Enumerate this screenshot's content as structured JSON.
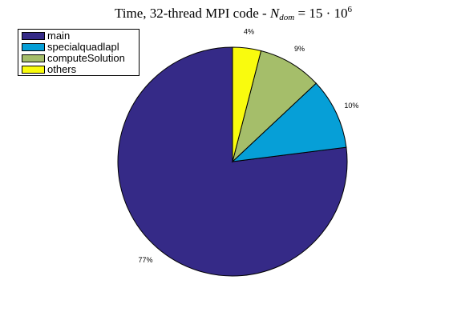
{
  "chart_data": {
    "type": "pie",
    "title": {
      "prefix": "Time, 32-thread MPI code - ",
      "var": "N",
      "var_sub": "dom",
      "rhs": "15 · 10",
      "rhs_exp": "6"
    },
    "slices": [
      {
        "name": "main",
        "value": 77,
        "label": "77%",
        "color": "#352a87"
      },
      {
        "name": "specialquadlapl",
        "value": 10,
        "label": "10%",
        "color": "#069fd7"
      },
      {
        "name": "computeSolution",
        "value": 9,
        "label": "9%",
        "color": "#a5be6a"
      },
      {
        "name": "others",
        "value": 4,
        "label": "4%",
        "color": "#f9fb0e"
      }
    ],
    "legend_position": "top-left"
  }
}
